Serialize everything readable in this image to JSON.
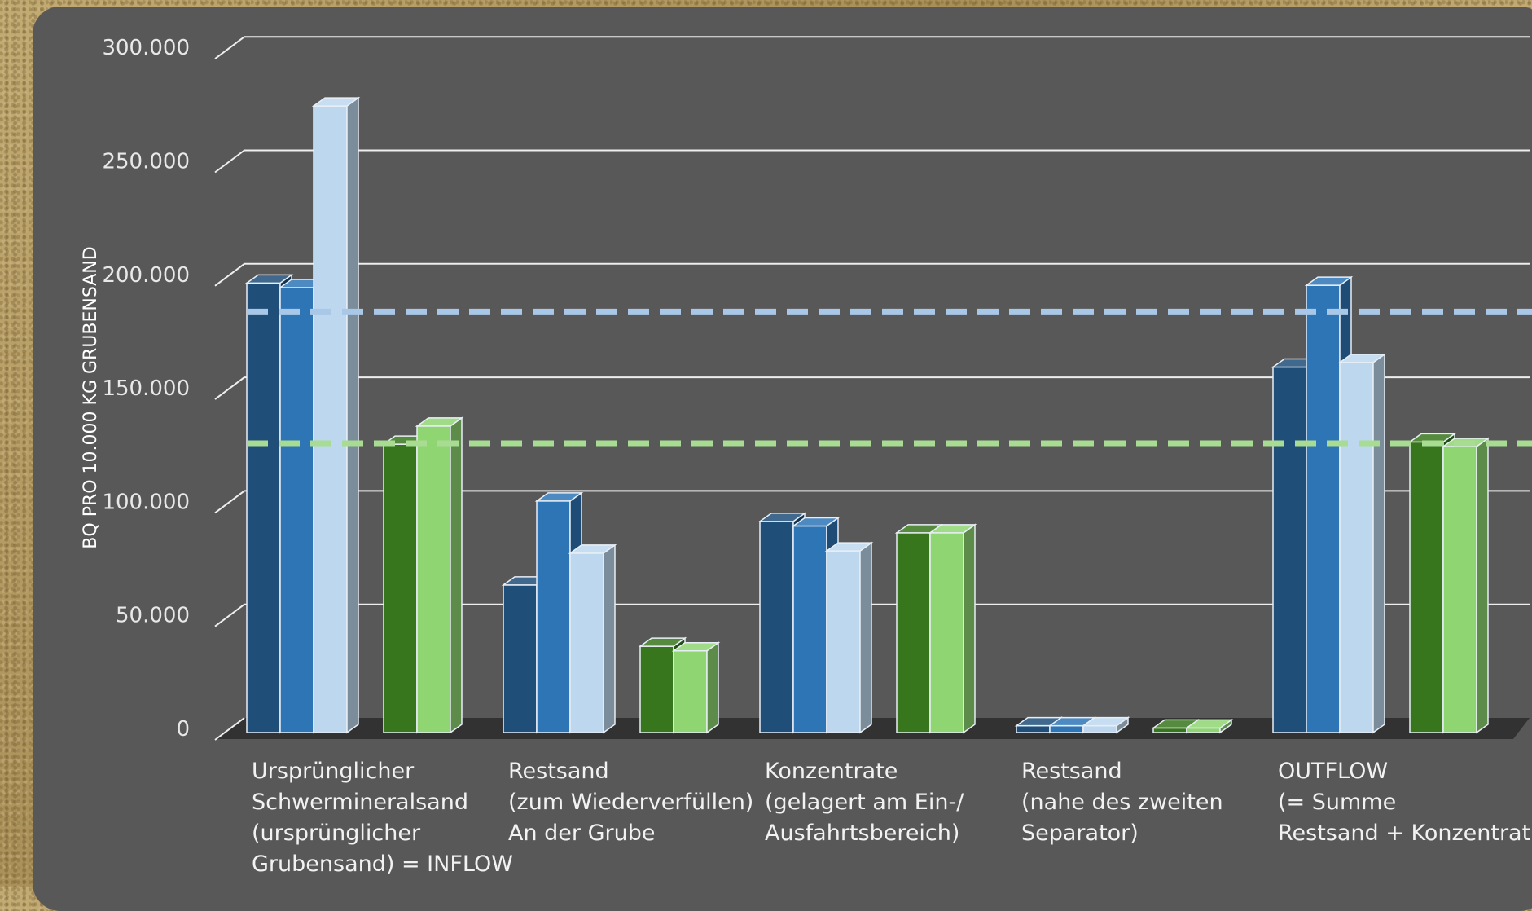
{
  "chart_data": {
    "type": "bar",
    "ylabel": "BQ PRO 10.000 KG GRUBENSAND",
    "ylim": [
      0,
      300000
    ],
    "yticks": [
      {
        "value": 0,
        "label": "0"
      },
      {
        "value": 50000,
        "label": "50.000"
      },
      {
        "value": 100000,
        "label": "100.000"
      },
      {
        "value": 150000,
        "label": "150.000"
      },
      {
        "value": 200000,
        "label": "200.000"
      },
      {
        "value": 250000,
        "label": "250.000"
      },
      {
        "value": 300000,
        "label": "300.000"
      }
    ],
    "categories": [
      [
        "Ursprünglicher",
        "Schwermineralsand",
        "(ursprünglicher",
        "Grubensand) = INFLOW"
      ],
      [
        "Restsand",
        "(zum Wiederverfüllen)",
        "An der Grube"
      ],
      [
        "Konzentrate",
        "(gelagert am Ein-/",
        "Ausfahrtsbereich)"
      ],
      [
        "Restsand",
        "(nahe des zweiten",
        "Separator)"
      ],
      [
        "OUTFLOW",
        "(= Summe",
        "Restsand + Konzentrat)"
      ]
    ],
    "blue_group": [
      {
        "color": "#1f4e79",
        "values": [
          198000,
          65000,
          93000,
          3000,
          161000
        ]
      },
      {
        "color": "#2e75b6",
        "values": [
          196000,
          102000,
          91000,
          3000,
          197000
        ]
      },
      {
        "color": "#bdd7ee",
        "values": [
          276000,
          79000,
          80000,
          3000,
          163000
        ]
      }
    ],
    "green_group": [
      {
        "color": "#38761d",
        "values": [
          127000,
          38000,
          88000,
          2000,
          128000
        ]
      },
      {
        "color": "#8fd672",
        "values": [
          135000,
          36000,
          88000,
          2000,
          126000
        ]
      }
    ],
    "reference_lines": [
      {
        "value": 184000,
        "color": "#a9c8e8"
      },
      {
        "value": 126000,
        "color": "#a8dc92"
      }
    ]
  }
}
